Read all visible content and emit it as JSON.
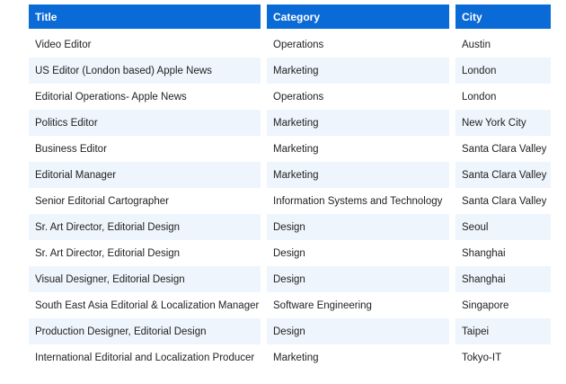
{
  "table": {
    "headers": {
      "title": "Title",
      "category": "Category",
      "city": "City"
    },
    "rows": [
      {
        "title": "Video Editor",
        "category": "Operations",
        "city": "Austin"
      },
      {
        "title": "US Editor (London based) Apple News",
        "category": "Marketing",
        "city": "London"
      },
      {
        "title": "Editorial Operations- Apple News",
        "category": "Operations",
        "city": "London"
      },
      {
        "title": "Politics Editor",
        "category": "Marketing",
        "city": "New York City"
      },
      {
        "title": "Business Editor",
        "category": "Marketing",
        "city": "Santa Clara Valley"
      },
      {
        "title": "Editorial Manager",
        "category": "Marketing",
        "city": "Santa Clara Valley"
      },
      {
        "title": "Senior Editorial Cartographer",
        "category": "Information Systems and Technology",
        "city": "Santa Clara Valley"
      },
      {
        "title": "Sr. Art Director, Editorial Design",
        "category": "Design",
        "city": "Seoul"
      },
      {
        "title": "Sr. Art Director, Editorial Design",
        "category": "Design",
        "city": "Shanghai"
      },
      {
        "title": "Visual Designer, Editorial Design",
        "category": "Design",
        "city": "Shanghai"
      },
      {
        "title": "South East Asia Editorial & Localization Manager",
        "category": "Software Engineering",
        "city": "Singapore"
      },
      {
        "title": "Production Designer, Editorial Design",
        "category": "Design",
        "city": "Taipei"
      },
      {
        "title": "International Editorial and Localization Producer",
        "category": "Marketing",
        "city": "Tokyo-IT"
      }
    ]
  },
  "colors": {
    "header_background": "#0a6ad6",
    "header_text": "#ffffff",
    "stripe_row": "#eef5fc"
  }
}
